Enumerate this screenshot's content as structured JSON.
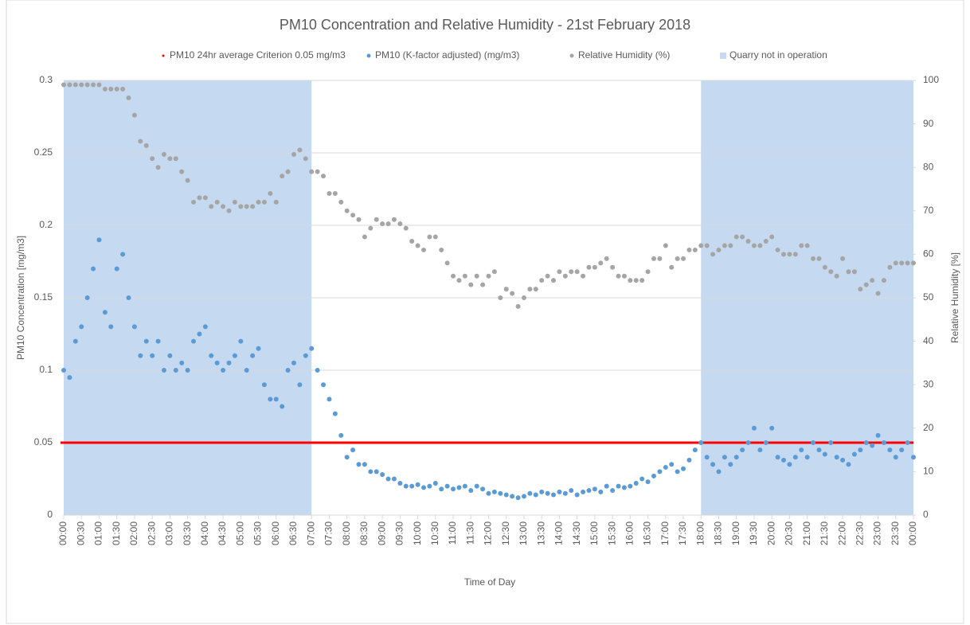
{
  "chart_data": {
    "type": "scatter",
    "title": "PM10 Concentration and Relative Humidity - 21st February 2018",
    "x_label": "Time of Day",
    "y_label": "PM10 Concentration [mg/m3]",
    "y2_label": "Relative Humidity [%]",
    "xlim": [
      0,
      1440
    ],
    "ylim": [
      0,
      0.3
    ],
    "y2lim": [
      0,
      100
    ],
    "yticks": [
      0,
      0.05,
      0.1,
      0.15,
      0.2,
      0.25,
      0.3
    ],
    "y2ticks": [
      0,
      10,
      20,
      30,
      40,
      50,
      60,
      70,
      80,
      90,
      100
    ],
    "xticks": [
      {
        "value": 0,
        "label": "00:00"
      },
      {
        "value": 30,
        "label": "00:30"
      },
      {
        "value": 60,
        "label": "01:00"
      },
      {
        "value": 90,
        "label": "01:30"
      },
      {
        "value": 120,
        "label": "02:00"
      },
      {
        "value": 150,
        "label": "02:30"
      },
      {
        "value": 180,
        "label": "03:00"
      },
      {
        "value": 210,
        "label": "03:30"
      },
      {
        "value": 240,
        "label": "04:00"
      },
      {
        "value": 270,
        "label": "04:30"
      },
      {
        "value": 300,
        "label": "05:00"
      },
      {
        "value": 330,
        "label": "05:30"
      },
      {
        "value": 360,
        "label": "06:00"
      },
      {
        "value": 390,
        "label": "06:30"
      },
      {
        "value": 420,
        "label": "07:00"
      },
      {
        "value": 450,
        "label": "07:30"
      },
      {
        "value": 480,
        "label": "08:00"
      },
      {
        "value": 510,
        "label": "08:30"
      },
      {
        "value": 540,
        "label": "09:00"
      },
      {
        "value": 570,
        "label": "09:30"
      },
      {
        "value": 600,
        "label": "10:00"
      },
      {
        "value": 630,
        "label": "10:30"
      },
      {
        "value": 660,
        "label": "11:00"
      },
      {
        "value": 690,
        "label": "11:30"
      },
      {
        "value": 720,
        "label": "12:00"
      },
      {
        "value": 750,
        "label": "12:30"
      },
      {
        "value": 780,
        "label": "13:00"
      },
      {
        "value": 810,
        "label": "13:30"
      },
      {
        "value": 840,
        "label": "14:00"
      },
      {
        "value": 870,
        "label": "14:30"
      },
      {
        "value": 900,
        "label": "15:00"
      },
      {
        "value": 930,
        "label": "15:30"
      },
      {
        "value": 960,
        "label": "16:00"
      },
      {
        "value": 990,
        "label": "16:30"
      },
      {
        "value": 1020,
        "label": "17:00"
      },
      {
        "value": 1050,
        "label": "17:30"
      },
      {
        "value": 1080,
        "label": "18:00"
      },
      {
        "value": 1110,
        "label": "18:30"
      },
      {
        "value": 1140,
        "label": "19:00"
      },
      {
        "value": 1170,
        "label": "19:30"
      },
      {
        "value": 1200,
        "label": "20:00"
      },
      {
        "value": 1230,
        "label": "20:30"
      },
      {
        "value": 1260,
        "label": "21:00"
      },
      {
        "value": 1290,
        "label": "21:30"
      },
      {
        "value": 1320,
        "label": "22:00"
      },
      {
        "value": 1350,
        "label": "22:30"
      },
      {
        "value": 1380,
        "label": "23:00"
      },
      {
        "value": 1410,
        "label": "23:30"
      },
      {
        "value": 1440,
        "label": "00:00"
      }
    ],
    "grid": true,
    "reference_line": {
      "name": "PM10 24hr average Criterion 0.05 mg/m3",
      "value": 0.05,
      "color": "#ff0000"
    },
    "bands": {
      "name": "Quarry not in operation",
      "color": "#c5d9f1",
      "ranges": [
        [
          0,
          420
        ],
        [
          1080,
          1440
        ]
      ]
    },
    "x": [
      0,
      10,
      20,
      30,
      40,
      50,
      60,
      70,
      80,
      90,
      100,
      110,
      120,
      130,
      140,
      150,
      160,
      170,
      180,
      190,
      200,
      210,
      220,
      230,
      240,
      250,
      260,
      270,
      280,
      290,
      300,
      310,
      320,
      330,
      340,
      350,
      360,
      370,
      380,
      390,
      400,
      410,
      420,
      430,
      440,
      450,
      460,
      470,
      480,
      490,
      500,
      510,
      520,
      530,
      540,
      550,
      560,
      570,
      580,
      590,
      600,
      610,
      620,
      630,
      640,
      650,
      660,
      670,
      680,
      690,
      700,
      710,
      720,
      730,
      740,
      750,
      760,
      770,
      780,
      790,
      800,
      810,
      820,
      830,
      840,
      850,
      860,
      870,
      880,
      890,
      900,
      910,
      920,
      930,
      940,
      950,
      960,
      970,
      980,
      990,
      1000,
      1010,
      1020,
      1030,
      1040,
      1050,
      1060,
      1070,
      1080,
      1090,
      1100,
      1110,
      1120,
      1130,
      1140,
      1150,
      1160,
      1170,
      1180,
      1190,
      1200,
      1210,
      1220,
      1230,
      1240,
      1250,
      1260,
      1270,
      1280,
      1290,
      1300,
      1310,
      1320,
      1330,
      1340,
      1350,
      1360,
      1370,
      1380,
      1390,
      1400,
      1410,
      1420,
      1430,
      1440
    ],
    "series": [
      {
        "name": "PM10 (K-factor adjusted) (mg/m3)",
        "color": "#5b9bd5",
        "axis": "y",
        "values": [
          0.1,
          0.095,
          0.12,
          0.13,
          0.15,
          0.17,
          0.19,
          0.14,
          0.13,
          0.17,
          0.18,
          0.15,
          0.13,
          0.11,
          0.12,
          0.11,
          0.12,
          0.1,
          0.11,
          0.1,
          0.105,
          0.1,
          0.12,
          0.125,
          0.13,
          0.11,
          0.105,
          0.1,
          0.105,
          0.11,
          0.12,
          0.1,
          0.11,
          0.115,
          0.09,
          0.08,
          0.08,
          0.075,
          0.1,
          0.105,
          0.09,
          0.11,
          0.115,
          0.1,
          0.09,
          0.08,
          0.07,
          0.055,
          0.04,
          0.045,
          0.035,
          0.035,
          0.03,
          0.03,
          0.028,
          0.025,
          0.025,
          0.022,
          0.02,
          0.02,
          0.021,
          0.019,
          0.02,
          0.022,
          0.018,
          0.02,
          0.018,
          0.019,
          0.02,
          0.017,
          0.02,
          0.018,
          0.015,
          0.016,
          0.015,
          0.014,
          0.013,
          0.012,
          0.013,
          0.015,
          0.014,
          0.016,
          0.015,
          0.014,
          0.016,
          0.015,
          0.017,
          0.014,
          0.016,
          0.017,
          0.018,
          0.016,
          0.02,
          0.017,
          0.02,
          0.019,
          0.02,
          0.022,
          0.025,
          0.023,
          0.027,
          0.03,
          0.033,
          0.035,
          0.03,
          0.032,
          0.038,
          0.045,
          0.05,
          0.04,
          0.035,
          0.03,
          0.04,
          0.035,
          0.04,
          0.045,
          0.05,
          0.06,
          0.045,
          0.05,
          0.06,
          0.04,
          0.038,
          0.035,
          0.04,
          0.045,
          0.04,
          0.05,
          0.045,
          0.042,
          0.05,
          0.04,
          0.038,
          0.035,
          0.042,
          0.045,
          0.05,
          0.048,
          0.055,
          0.05,
          0.045,
          0.04,
          0.045,
          0.05,
          0.04
        ]
      },
      {
        "name": "Relative Humidity (%)",
        "color": "#a5a5a5",
        "axis": "y2",
        "values": [
          99,
          99,
          99,
          99,
          99,
          99,
          99,
          98,
          98,
          98,
          98,
          96,
          92,
          86,
          85,
          82,
          80,
          83,
          82,
          82,
          79,
          77,
          72,
          73,
          73,
          71,
          72,
          71,
          70,
          72,
          71,
          71,
          71,
          72,
          72,
          74,
          72,
          78,
          79,
          83,
          84,
          82,
          79,
          79,
          78,
          74,
          74,
          72,
          70,
          69,
          68,
          64,
          66,
          68,
          67,
          67,
          68,
          67,
          66,
          63,
          62,
          61,
          64,
          64,
          61,
          58,
          55,
          54,
          55,
          53,
          55,
          53,
          55,
          56,
          50,
          52,
          51,
          48,
          50,
          52,
          52,
          54,
          55,
          54,
          56,
          55,
          56,
          56,
          55,
          57,
          57,
          58,
          59,
          57,
          55,
          55,
          54,
          54,
          54,
          56,
          59,
          59,
          62,
          57,
          59,
          59,
          61,
          61,
          62,
          62,
          60,
          61,
          62,
          62,
          64,
          64,
          63,
          62,
          62,
          63,
          64,
          61,
          60,
          60,
          60,
          62,
          62,
          59,
          59,
          57,
          56,
          55,
          59,
          56,
          56,
          52,
          53,
          54,
          51,
          54,
          57,
          58,
          58,
          58,
          58
        ]
      }
    ]
  }
}
